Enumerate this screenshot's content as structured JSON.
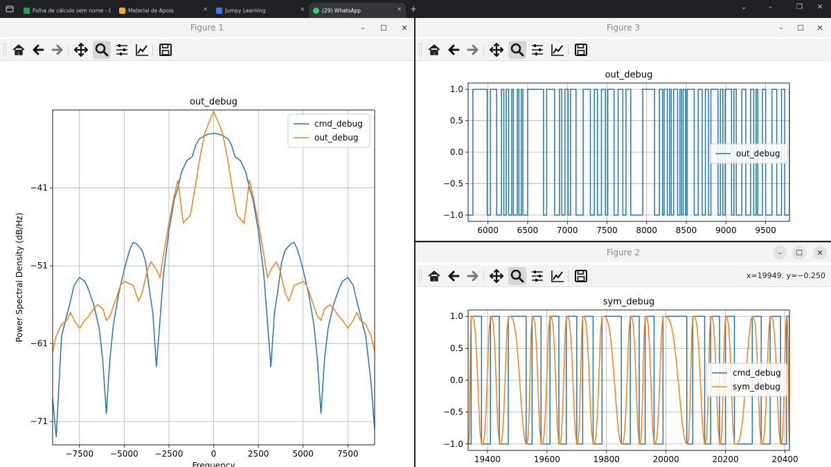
{
  "browser": {
    "tabs": [
      {
        "label": "Folha de cálculo sem nome - G",
        "icon": "sheets-icon",
        "color": "#1fa463"
      },
      {
        "label": "Material de Apoio",
        "icon": "folder-icon",
        "color": "#f2b400"
      },
      {
        "label": "Jumpy Learning",
        "icon": "app-icon",
        "color": "#2f80ed"
      },
      {
        "label": "(29) WhatsApp",
        "icon": "whatsapp-icon",
        "color": "#25d366"
      }
    ]
  },
  "figure1": {
    "window_title": "Figure 1",
    "chart_data": {
      "type": "line",
      "title": "out_debug",
      "xlabel": "Frequency",
      "ylabel": "Power Spectral Density (dB/Hz)",
      "xlim": [
        -9000,
        9000
      ],
      "ylim": [
        -74,
        -31
      ],
      "xticks": [
        -7500,
        -5000,
        -2500,
        0,
        2500,
        5000,
        7500
      ],
      "xtick_labels": [
        "−7500",
        "−5000",
        "−2500",
        "0",
        "2500",
        "5000",
        "7500"
      ],
      "yticks": [
        -41,
        -51,
        -61,
        -71
      ],
      "ytick_labels": [
        "−41",
        "−51",
        "−61",
        "−71"
      ],
      "grid": true,
      "legend": "upper right",
      "series": [
        {
          "name": "cmd_debug",
          "color": "#1f77b4",
          "x": [
            -9000,
            -8800,
            -8500,
            -8000,
            -7800,
            -7500,
            -7200,
            -7000,
            -6700,
            -6400,
            -6200,
            -6000,
            -5800,
            -5600,
            -5300,
            -5000,
            -4700,
            -4500,
            -4300,
            -4000,
            -3800,
            -3600,
            -3400,
            -3200,
            -3000,
            -2800,
            -2500,
            -2200,
            -2000,
            -1800,
            -1500,
            -1200,
            -1000,
            -800,
            -500,
            -300,
            0,
            300,
            500,
            800,
            1000,
            1200,
            1500,
            1800,
            2000,
            2200,
            2500,
            2800,
            3000,
            3200,
            3400,
            3600,
            3800,
            4000,
            4300,
            4500,
            4700,
            5000,
            5300,
            5600,
            5800,
            6000,
            6200,
            6400,
            6700,
            7000,
            7200,
            7500,
            7800,
            8000,
            8500,
            8800,
            9000
          ],
          "y": [
            -68,
            -73,
            -60,
            -55.5,
            -53.5,
            -52.5,
            -53,
            -54,
            -56,
            -59,
            -63,
            -70,
            -63,
            -58.5,
            -54.5,
            -51.5,
            -49,
            -48,
            -48.2,
            -49,
            -50.5,
            -54,
            -57,
            -64,
            -58,
            -52,
            -46.5,
            -42.5,
            -41,
            -39,
            -37.5,
            -37,
            -35.5,
            -34.7,
            -34.3,
            -34.1,
            -34,
            -34.1,
            -34.3,
            -34.7,
            -35.5,
            -37,
            -37.5,
            -39,
            -41,
            -42.5,
            -46.5,
            -52,
            -58,
            -64,
            -57,
            -54,
            -50.5,
            -49,
            -48.2,
            -48,
            -49,
            -51.5,
            -54.5,
            -58.5,
            -63,
            -70,
            -63,
            -59,
            -56,
            -54,
            -53,
            -52.5,
            -53.5,
            -55.5,
            -60,
            -66,
            -72
          ]
        },
        {
          "name": "out_debug",
          "color": "#ff7f0e",
          "x": [
            -9000,
            -8800,
            -8500,
            -8200,
            -8000,
            -7800,
            -7500,
            -7200,
            -7000,
            -6700,
            -6500,
            -6200,
            -6000,
            -5800,
            -5500,
            -5200,
            -5000,
            -4800,
            -4500,
            -4200,
            -4000,
            -3700,
            -3500,
            -3200,
            -3000,
            -2800,
            -2500,
            -2200,
            -2000,
            -1700,
            -1500,
            -1300,
            -1000,
            -800,
            -500,
            -300,
            0,
            300,
            500,
            800,
            1000,
            1300,
            1500,
            1700,
            2000,
            2200,
            2500,
            2800,
            3000,
            3200,
            3500,
            3700,
            4000,
            4200,
            4500,
            4800,
            5000,
            5200,
            5500,
            5800,
            6000,
            6200,
            6500,
            6700,
            7000,
            7200,
            7500,
            7800,
            8000,
            8200,
            8500,
            8800,
            9000
          ],
          "y": [
            -62,
            -60,
            -58.5,
            -58,
            -57,
            -58,
            -59,
            -58,
            -57.5,
            -56.5,
            -56,
            -56.5,
            -58,
            -57.5,
            -55.5,
            -53.5,
            -53,
            -53.2,
            -53.5,
            -55.5,
            -54.5,
            -51.5,
            -50.5,
            -51.5,
            -52.5,
            -49.5,
            -45.5,
            -42,
            -40,
            -45.5,
            -45,
            -44.5,
            -40.5,
            -37.5,
            -34,
            -32.8,
            -31.2,
            -32.8,
            -34,
            -37.5,
            -40.5,
            -44.5,
            -45,
            -45.5,
            -40,
            -42,
            -45.5,
            -49.5,
            -52.5,
            -51.5,
            -50.5,
            -51.5,
            -54.5,
            -55.5,
            -53.5,
            -53.2,
            -53,
            -53.5,
            -55.5,
            -57.5,
            -58,
            -56.5,
            -56,
            -56.5,
            -57.5,
            -58,
            -59,
            -58,
            -57,
            -58,
            -58.5,
            -60,
            -62
          ]
        }
      ]
    }
  },
  "figure3": {
    "window_title": "Figure 3",
    "chart_data": {
      "type": "line",
      "title": "out_debug",
      "xlim": [
        5750,
        9800
      ],
      "ylim": [
        -1.1,
        1.1
      ],
      "xticks": [
        6000,
        6500,
        7000,
        7500,
        8000,
        8500,
        9000,
        9500
      ],
      "yticks": [
        1.0,
        0.5,
        0.0,
        -0.5,
        -1.0
      ],
      "ytick_labels": [
        "1.0",
        "0.5",
        "0.0",
        "−0.5",
        "−1.0"
      ],
      "grid": true,
      "legend": "center right",
      "series": [
        {
          "name": "out_debug",
          "color": "#1f77b4",
          "step": true,
          "x": [
            5750,
            5810,
            5990,
            6030,
            6110,
            6170,
            6200,
            6230,
            6260,
            6300,
            6320,
            6370,
            6390,
            6420,
            6440,
            6500,
            6700,
            6740,
            6840,
            6900,
            6930,
            6970,
            7010,
            7040,
            7110,
            7200,
            7290,
            7340,
            7380,
            7430,
            7480,
            7510,
            7590,
            7640,
            7700,
            7740,
            7800,
            7950,
            8100,
            8160,
            8200,
            8220,
            8260,
            8290,
            8310,
            8340,
            8390,
            8420,
            8440,
            8460,
            8490,
            8510,
            8600,
            8650,
            8700,
            8740,
            8780,
            8810,
            8900,
            8930,
            8960,
            8990,
            9070,
            9100,
            9130,
            9200,
            9250,
            9310,
            9350,
            9380,
            9400,
            9460,
            9500,
            9580,
            9640,
            9700,
            9740,
            9800
          ],
          "y": [
            -1,
            1,
            -1,
            1,
            -1,
            1,
            -1,
            1,
            -1,
            1,
            -1,
            1,
            -1,
            1,
            -1,
            1,
            -1,
            1,
            -1,
            1,
            -1,
            1,
            -1,
            1,
            -1,
            1,
            -1,
            1,
            -1,
            1,
            -1,
            1,
            -1,
            1,
            -1,
            1,
            -1,
            1,
            -1,
            1,
            -1,
            1,
            -1,
            1,
            -1,
            1,
            -1,
            1,
            -1,
            1,
            -1,
            1,
            -1,
            1,
            -1,
            1,
            -1,
            1,
            -1,
            1,
            -1,
            1,
            -1,
            1,
            -1,
            1,
            -1,
            1,
            -1,
            1,
            -1,
            1,
            -1,
            1,
            -1,
            1,
            -1,
            1
          ]
        }
      ]
    }
  },
  "figure2": {
    "window_title": "Figure 2",
    "cursor_readout": "x=19949. y=−0.250",
    "chart_data": {
      "type": "line",
      "title": "sym_debug",
      "xlim": [
        19335,
        20415
      ],
      "ylim": [
        -1.1,
        1.1
      ],
      "xticks": [
        19400,
        19600,
        19800,
        20000,
        20200,
        20400
      ],
      "yticks": [
        1.0,
        0.5,
        0.0,
        -0.5,
        -1.0
      ],
      "ytick_labels": [
        "1.0",
        "0.5",
        "0.0",
        "−0.5",
        "−1.0"
      ],
      "grid": true,
      "legend": "center right",
      "series": [
        {
          "name": "cmd_debug",
          "color": "#1f77b4",
          "step": true,
          "x": [
            19335,
            19345,
            19380,
            19410,
            19440,
            19470,
            19530,
            19550,
            19580,
            19610,
            19640,
            19665,
            19700,
            19720,
            19755,
            19785,
            19850,
            19880,
            19910,
            19930,
            19960,
            19990,
            20070,
            20090,
            20130,
            20150,
            20180,
            20200,
            20230,
            20290,
            20320,
            20350,
            20385,
            20405,
            20415
          ],
          "y": [
            -1,
            1,
            -1,
            1,
            -1,
            1,
            -1,
            1,
            -1,
            1,
            -1,
            1,
            -1,
            1,
            -1,
            1,
            -1,
            1,
            -1,
            1,
            -1,
            1,
            -1,
            1,
            -1,
            1,
            -1,
            1,
            -1,
            1,
            -1,
            1,
            -1,
            1,
            -1
          ]
        },
        {
          "name": "sym_debug",
          "color": "#ff7f0e",
          "from_series": "cmd_debug",
          "smoothing_samples": 5
        }
      ]
    }
  }
}
